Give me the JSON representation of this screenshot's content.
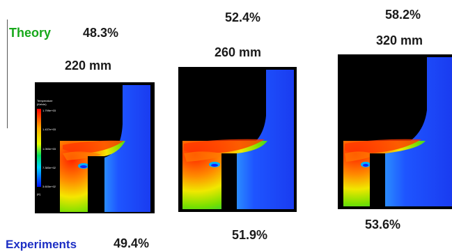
{
  "theory": {
    "label": "Theory",
    "values": [
      "48.3%",
      "52.4%",
      "58.2%"
    ]
  },
  "experiments": {
    "label": "Experiments",
    "values": [
      "49.4%",
      "51.9%",
      "53.6%"
    ]
  },
  "cases": [
    {
      "size": "220 mm"
    },
    {
      "size": "260 mm"
    },
    {
      "size": "320 mm"
    }
  ],
  "legend": {
    "title": "Temperature",
    "subtitle": "(Kelvin)",
    "ticks": [
      "1.799e+03",
      "1.437e+03",
      "1.060e+03",
      "7.380e+02",
      "3.600e+02"
    ],
    "unit": "(K)"
  },
  "colors": {
    "theory": "#17a81a",
    "experiments": "#1d2fc4",
    "cold_fluid": "#1f4dff",
    "hot_fluid": "#ff2a00"
  }
}
